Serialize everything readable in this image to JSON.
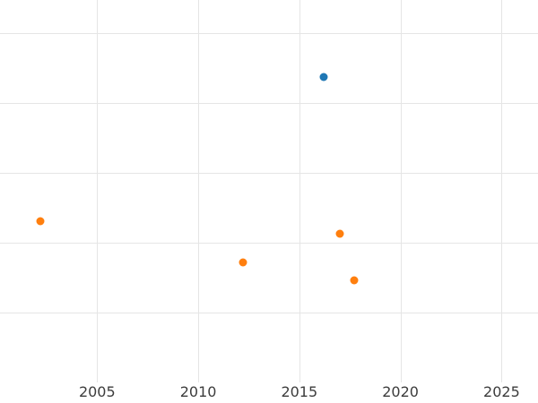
{
  "chart_data": {
    "type": "scatter",
    "title": "",
    "xlabel": "",
    "ylabel": "",
    "xlim": [
      2000.2,
      2026.8
    ],
    "ylim": [
      0,
      5.47
    ],
    "x_ticks": [
      "2005",
      "2010",
      "2015",
      "2020",
      "2025"
    ],
    "x_tick_values": [
      2005,
      2010,
      2015,
      2020,
      2025
    ],
    "y_axis_labels_visible": false,
    "grid": true,
    "legend": "none",
    "series": [
      {
        "name": "blue-series",
        "color": "#1f77b4",
        "points": [
          {
            "x": 2016.2,
            "y": 4.37
          }
        ]
      },
      {
        "name": "orange-series",
        "color": "#ff7f0e",
        "points": [
          {
            "x": 2002.2,
            "y": 2.31
          },
          {
            "x": 2012.2,
            "y": 1.72
          },
          {
            "x": 2017.0,
            "y": 2.13
          },
          {
            "x": 2017.7,
            "y": 1.46
          }
        ]
      }
    ],
    "colors": {
      "background": "#ffffff",
      "gridline": "#e5e5e5",
      "tick_label": "#3c3c3c"
    }
  }
}
